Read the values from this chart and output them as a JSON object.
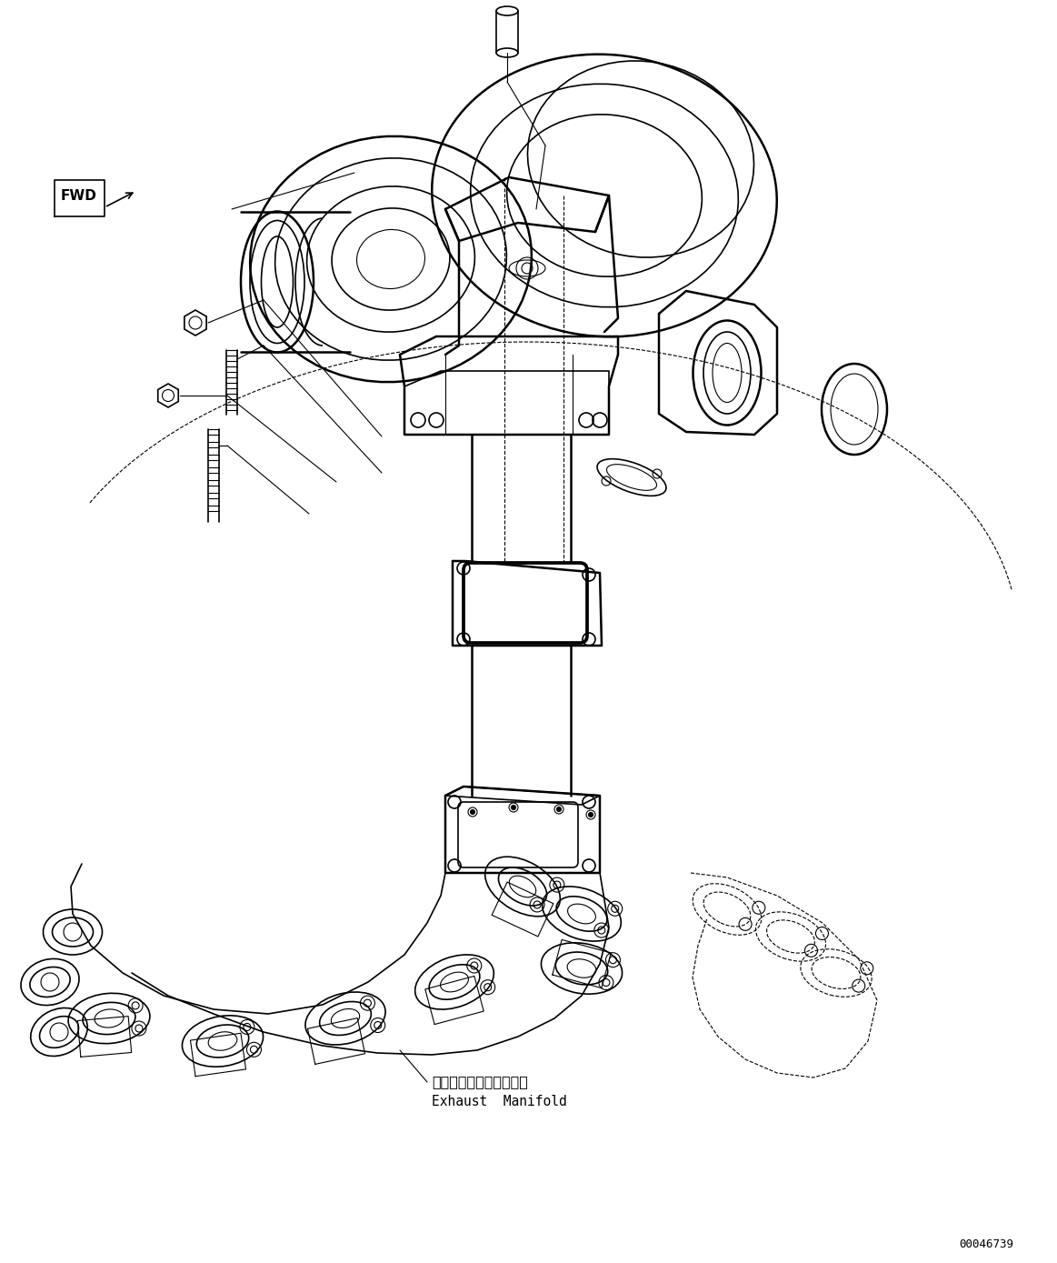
{
  "bg_color": "#ffffff",
  "line_color": "#000000",
  "fig_width": 11.63,
  "fig_height": 13.89,
  "dpi": 100,
  "label_exhaust_jp": "エキゾーストマニホルド",
  "label_exhaust_en": "Exhaust  Manifold",
  "part_number": "00046739",
  "fwd_label": "FWD"
}
